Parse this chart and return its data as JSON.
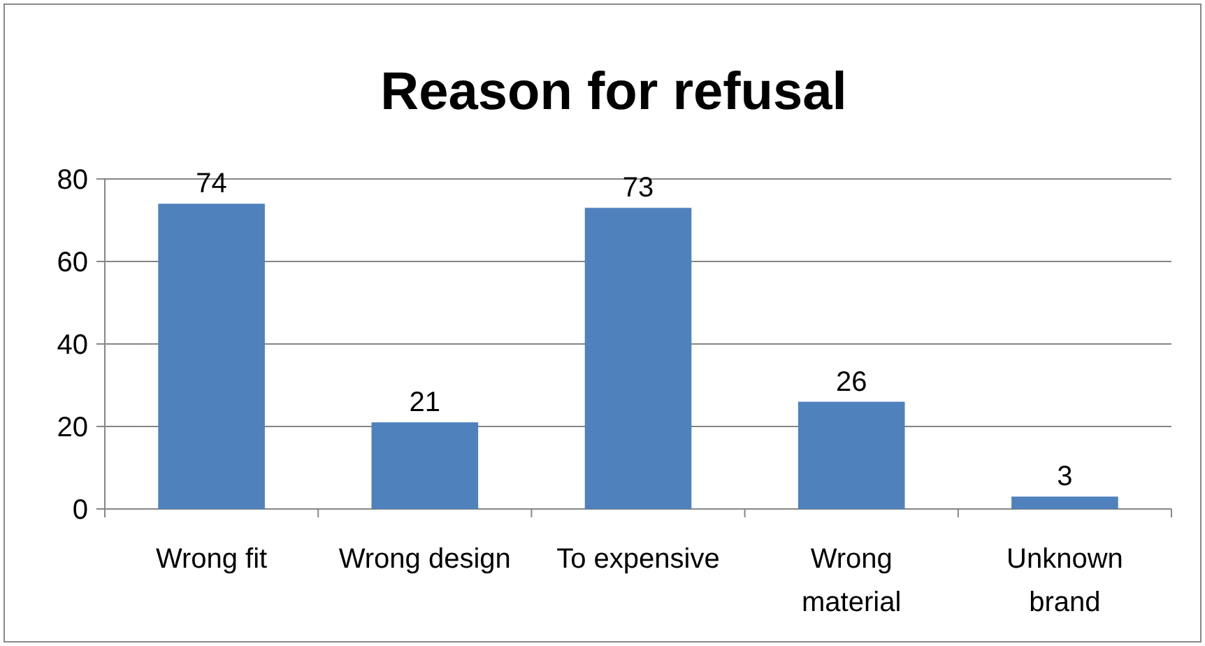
{
  "chart_data": {
    "type": "bar",
    "title": "Reason for refusal",
    "categories": [
      "Wrong fit",
      "Wrong design",
      "To expensive",
      "Wrong material",
      "Unknown brand"
    ],
    "values": [
      74,
      21,
      73,
      26,
      3
    ],
    "color": "#4f81bd",
    "ylim": [
      0,
      80
    ],
    "yticks": [
      0,
      20,
      40,
      60,
      80
    ],
    "grid": "y",
    "data_labels": true
  }
}
